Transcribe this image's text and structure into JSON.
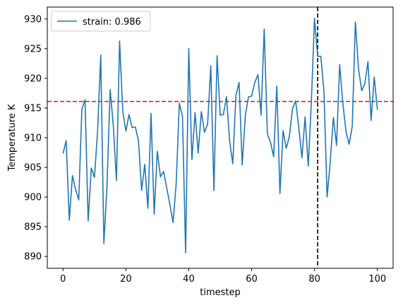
{
  "chart_data": {
    "type": "line",
    "xlabel": "timestep",
    "ylabel": "Temperature K",
    "xlim": [
      -5,
      105
    ],
    "ylim": [
      888,
      932
    ],
    "xticks": [
      0,
      20,
      40,
      60,
      80,
      100
    ],
    "yticks": [
      890,
      895,
      900,
      905,
      910,
      915,
      920,
      925,
      930
    ],
    "grid": false,
    "legend_position": "upper-left",
    "series": [
      {
        "name": "strain: 0.986",
        "color": "#1f77b4",
        "x": [
          0,
          1,
          2,
          3,
          4,
          5,
          6,
          7,
          8,
          9,
          10,
          11,
          12,
          13,
          14,
          15,
          16,
          17,
          18,
          19,
          20,
          21,
          22,
          23,
          24,
          25,
          26,
          27,
          28,
          29,
          30,
          31,
          32,
          33,
          34,
          35,
          36,
          37,
          38,
          39,
          40,
          41,
          42,
          43,
          44,
          45,
          46,
          47,
          48,
          49,
          50,
          51,
          52,
          53,
          54,
          55,
          56,
          57,
          58,
          59,
          60,
          61,
          62,
          63,
          64,
          65,
          66,
          67,
          68,
          69,
          70,
          71,
          72,
          73,
          74,
          75,
          76,
          77,
          78,
          79,
          80,
          81,
          82,
          83,
          84,
          85,
          86,
          87,
          88,
          89,
          90,
          91,
          92,
          93,
          94,
          95,
          96,
          97,
          98,
          99,
          100
        ],
        "y": [
          907.3,
          909.5,
          896.1,
          903.6,
          901.3,
          899.5,
          914.8,
          916.4,
          896.0,
          904.9,
          903.3,
          911.1,
          923.9,
          892.2,
          902.0,
          918.1,
          912.0,
          902.8,
          926.3,
          914.5,
          911.1,
          913.9,
          911.7,
          911.8,
          909.5,
          901.1,
          905.5,
          898.1,
          914.1,
          897.1,
          907.7,
          903.4,
          904.3,
          901.5,
          898.7,
          895.7,
          902.3,
          915.8,
          913.6,
          890.6,
          925.0,
          906.3,
          914.2,
          907.4,
          914.4,
          910.9,
          912.3,
          922.1,
          901.1,
          923.8,
          913.8,
          913.9,
          916.9,
          909.4,
          905.6,
          917.1,
          919.3,
          905.4,
          913.8,
          916.9,
          917.0,
          919.3,
          920.6,
          913.8,
          928.3,
          910.6,
          909.2,
          906.8,
          918.7,
          900.6,
          911.2,
          908.2,
          910.2,
          914.9,
          916.2,
          911.7,
          906.6,
          913.5,
          905.2,
          916.1,
          930.1,
          923.7,
          923.7,
          917.8,
          900.0,
          905.9,
          913.4,
          908.7,
          922.3,
          915.8,
          911.1,
          908.9,
          911.9,
          929.5,
          921.6,
          917.9,
          919.1,
          922.8,
          912.9,
          920.2,
          914.7
        ]
      }
    ],
    "reference_lines": [
      {
        "orientation": "horizontal",
        "value": 916.1,
        "color": "#d62728",
        "style": "dashed"
      },
      {
        "orientation": "vertical",
        "value": 81,
        "color": "#000000",
        "style": "dashed"
      }
    ]
  }
}
